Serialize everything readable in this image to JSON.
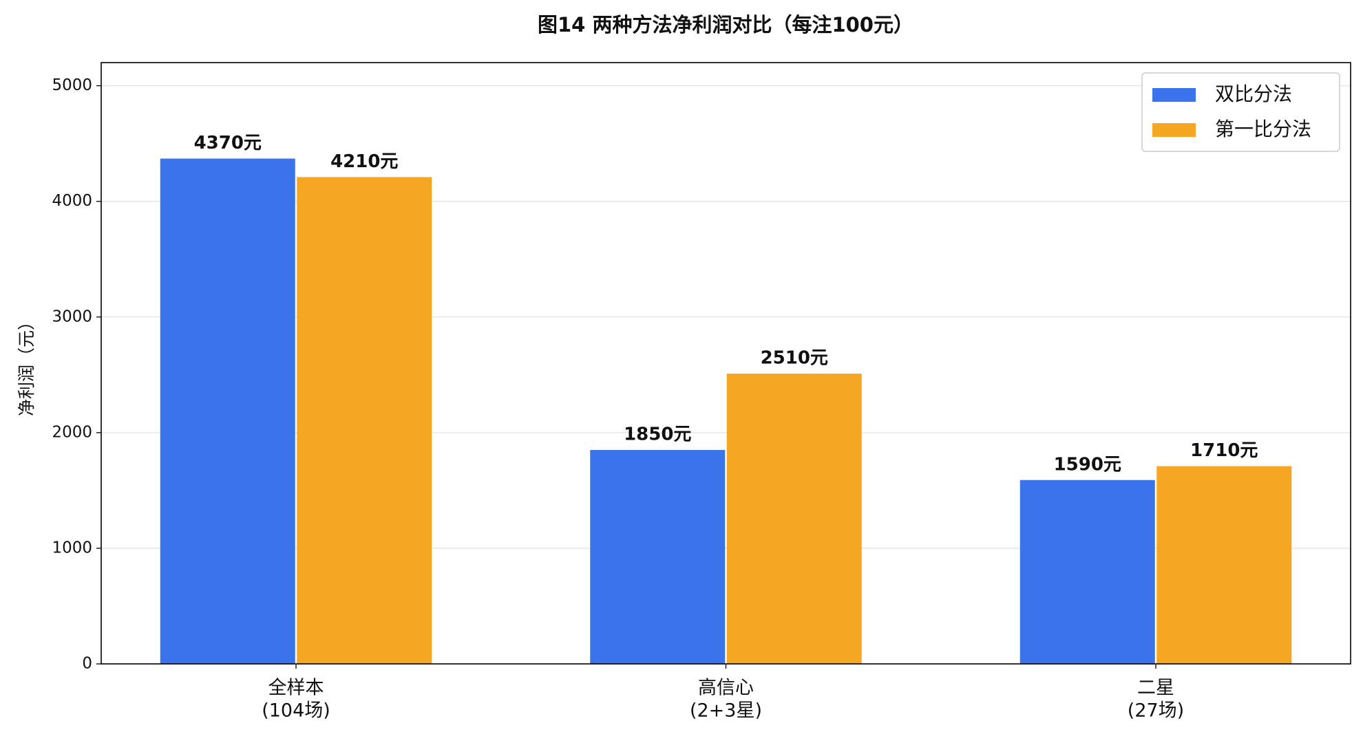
{
  "chart_data": {
    "type": "bar",
    "title": "图14  两种方法净利润对比（每注100元）",
    "ylabel": "净利润（元）",
    "categories": [
      [
        "全样本",
        "(104场)"
      ],
      [
        "高信心",
        "(2+3星)"
      ],
      [
        "二星",
        "(27场)"
      ]
    ],
    "series": [
      {
        "name": "双比分法",
        "color": "#3b73ec",
        "values": [
          4370,
          1850,
          1590
        ],
        "value_labels": [
          "4370元",
          "1850元",
          "1590元"
        ]
      },
      {
        "name": "第一比分法",
        "color": "#f5a623",
        "values": [
          4210,
          2510,
          1710
        ],
        "value_labels": [
          "4210元",
          "2510元",
          "1710元"
        ]
      }
    ],
    "ylim": [
      0,
      5200
    ],
    "yticks": [
      0,
      1000,
      2000,
      3000,
      4000,
      5000
    ],
    "grid": true,
    "legend": "upper right"
  }
}
